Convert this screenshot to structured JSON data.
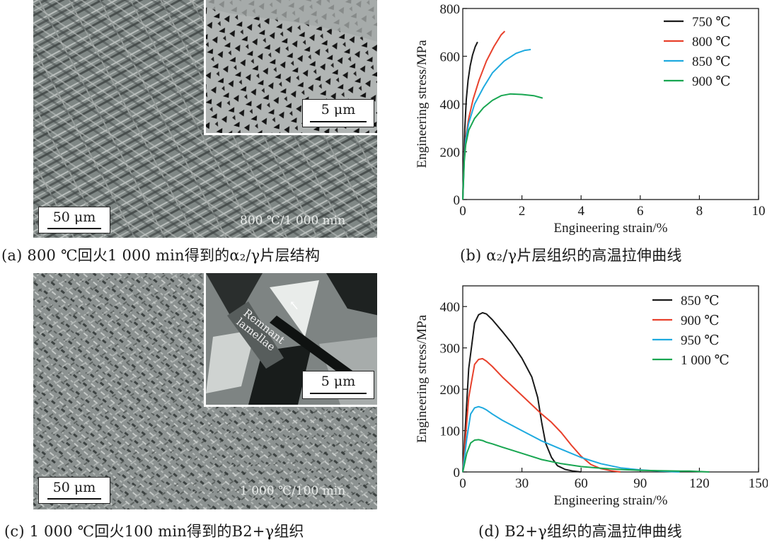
{
  "panels": {
    "a": {
      "caption": "(a) 800 ℃回火1 000 min得到的α₂/γ片层结构",
      "scale_main": "50 μm",
      "scale_inset": "5 μm",
      "condition": "800 ℃/1 000 min"
    },
    "b": {
      "caption": "(b) α₂/γ片层组织的高温拉伸曲线"
    },
    "c": {
      "caption": "(c) 1 000 ℃回火100 min得到的B2+γ组织",
      "scale_main": "50 μm",
      "scale_inset": "5 μm",
      "condition": "1 000 ℃/100 min",
      "annotation": "Remnant lamellae"
    },
    "d": {
      "caption": "(d) B2+γ组织的高温拉伸曲线"
    }
  },
  "colors": {
    "black": "#1a1a1a",
    "red": "#e8412c",
    "blue": "#1eaadf",
    "green": "#18a651"
  },
  "chart_data": [
    {
      "type": "line",
      "title": "",
      "xlabel": "Engineering strain/%",
      "ylabel": "Engineering stress/MPa",
      "xlim": [
        0,
        10
      ],
      "ylim": [
        0,
        800
      ],
      "xticks": [
        0,
        2,
        4,
        6,
        8,
        10
      ],
      "yticks": [
        0,
        200,
        400,
        600,
        800
      ],
      "legend_position": "top-right",
      "series": [
        {
          "name": "750 ℃",
          "color": "#1a1a1a",
          "x": [
            0,
            0.03,
            0.07,
            0.12,
            0.18,
            0.25,
            0.33,
            0.42,
            0.5
          ],
          "y": [
            0,
            150,
            300,
            420,
            500,
            560,
            605,
            640,
            660
          ]
        },
        {
          "name": "800 ℃",
          "color": "#e8412c",
          "x": [
            0,
            0.05,
            0.1,
            0.2,
            0.35,
            0.55,
            0.8,
            1.05,
            1.3,
            1.42
          ],
          "y": [
            0,
            180,
            260,
            340,
            420,
            500,
            580,
            640,
            690,
            705
          ]
        },
        {
          "name": "850 ℃",
          "color": "#1eaadf",
          "x": [
            0,
            0.05,
            0.1,
            0.2,
            0.4,
            0.7,
            1.0,
            1.4,
            1.8,
            2.1,
            2.3
          ],
          "y": [
            0,
            170,
            250,
            320,
            400,
            470,
            530,
            580,
            612,
            625,
            628
          ]
        },
        {
          "name": "900 ℃",
          "color": "#18a651",
          "x": [
            0,
            0.05,
            0.1,
            0.2,
            0.4,
            0.7,
            1.0,
            1.3,
            1.6,
            2.0,
            2.4,
            2.7
          ],
          "y": [
            0,
            160,
            230,
            290,
            340,
            385,
            415,
            435,
            442,
            440,
            435,
            425
          ]
        }
      ]
    },
    {
      "type": "line",
      "title": "",
      "xlabel": "Engineering strain/%",
      "ylabel": "Engineering stress/MPa",
      "xlim": [
        0,
        150
      ],
      "ylim": [
        0,
        450
      ],
      "xticks": [
        0,
        30,
        60,
        90,
        120,
        150
      ],
      "yticks": [
        0,
        100,
        200,
        300,
        400
      ],
      "legend_position": "top-right",
      "series": [
        {
          "name": "850 ℃",
          "color": "#1a1a1a",
          "x": [
            0,
            3,
            6,
            8,
            10,
            12,
            15,
            20,
            25,
            30,
            35,
            38,
            40,
            42,
            45,
            48,
            52,
            56,
            60
          ],
          "y": [
            0,
            250,
            360,
            380,
            385,
            382,
            368,
            340,
            310,
            275,
            230,
            180,
            120,
            70,
            35,
            15,
            6,
            2,
            0
          ]
        },
        {
          "name": "900 ℃",
          "color": "#e8412c",
          "x": [
            0,
            3,
            6,
            8,
            10,
            12,
            15,
            20,
            30,
            40,
            45,
            50,
            55,
            60,
            65,
            70,
            75,
            80
          ],
          "y": [
            0,
            180,
            260,
            272,
            274,
            268,
            255,
            230,
            185,
            140,
            120,
            95,
            65,
            38,
            18,
            8,
            3,
            0
          ]
        },
        {
          "name": "950 ℃",
          "color": "#1eaadf",
          "x": [
            0,
            2,
            4,
            6,
            8,
            10,
            12,
            15,
            20,
            30,
            40,
            50,
            60,
            70,
            80,
            90,
            100,
            110
          ],
          "y": [
            0,
            80,
            140,
            155,
            158,
            155,
            150,
            140,
            125,
            100,
            75,
            55,
            35,
            20,
            10,
            5,
            2,
            0
          ]
        },
        {
          "name": "1 000 ℃",
          "color": "#18a651",
          "x": [
            0,
            2,
            4,
            6,
            8,
            10,
            12,
            15,
            20,
            30,
            40,
            50,
            60,
            70,
            80,
            90,
            100,
            110,
            115,
            125
          ],
          "y": [
            0,
            45,
            70,
            77,
            78,
            76,
            72,
            68,
            60,
            45,
            30,
            20,
            13,
            9,
            6,
            4,
            3,
            2,
            2,
            0
          ]
        }
      ]
    }
  ]
}
